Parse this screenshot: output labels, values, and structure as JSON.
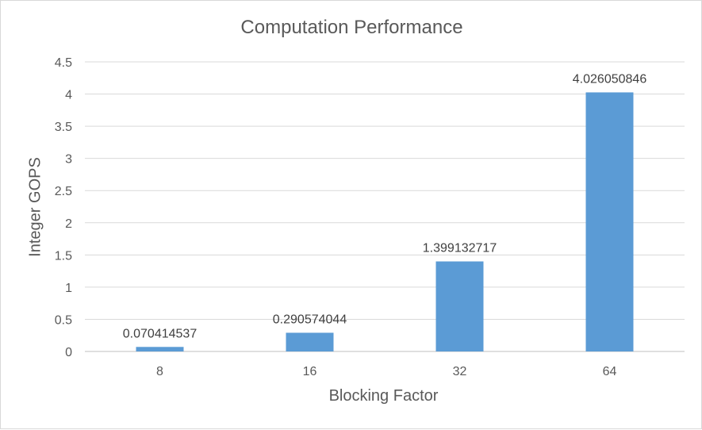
{
  "chart_data": {
    "type": "bar",
    "title": "Computation Performance",
    "xlabel": "Blocking Factor",
    "ylabel": "Integer GOPS",
    "categories": [
      "8",
      "16",
      "32",
      "64"
    ],
    "values": [
      0.070414537,
      0.290574044,
      1.399132717,
      4.026050846
    ],
    "data_labels": [
      "0.070414537",
      "0.290574044",
      "1.399132717",
      "4.026050846"
    ],
    "ylim": [
      0,
      4.5
    ],
    "yticks": [
      "0",
      "0.5",
      "1",
      "1.5",
      "2",
      "2.5",
      "3",
      "3.5",
      "4",
      "4.5"
    ],
    "grid": true,
    "legend": "none",
    "bar_color": "#5b9bd5",
    "grid_color": "#d9d9d9"
  }
}
